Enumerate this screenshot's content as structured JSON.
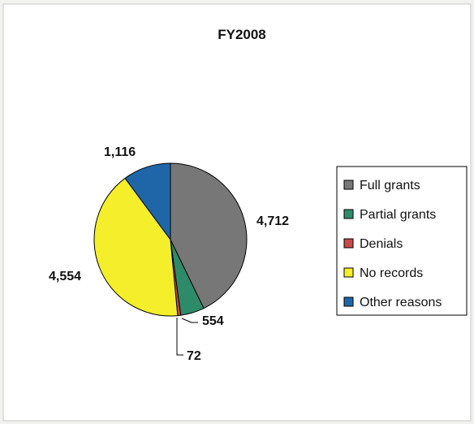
{
  "chart_data": {
    "type": "pie",
    "title": "FY2008",
    "categories": [
      "Full grants",
      "Partial grants",
      "Denials",
      "No records",
      "Other reasons"
    ],
    "values": [
      4712,
      554,
      72,
      4554,
      1116
    ],
    "data_labels": [
      "4,712",
      "554",
      "72",
      "4,554",
      "1,116"
    ],
    "colors": [
      "#777777",
      "#2e8b6a",
      "#c84a4a",
      "#f5ee2a",
      "#1f66a8"
    ],
    "legend_position": "right",
    "start_angle_deg": 0,
    "direction": "clockwise"
  }
}
